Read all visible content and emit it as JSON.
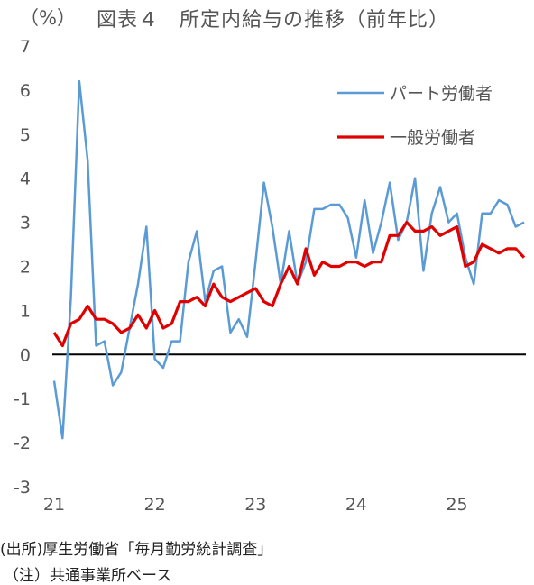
{
  "chart_data": {
    "type": "line",
    "unit_label": "（%）",
    "title": "図表４　所定内給与の推移（前年比）",
    "ylim": [
      -3,
      7
    ],
    "y_ticks": [
      7,
      6,
      5,
      4,
      3,
      2,
      1,
      0,
      -1,
      -2,
      -3
    ],
    "x_tick_labels": [
      "21",
      "22",
      "23",
      "24",
      "25"
    ],
    "legend_position": "top-right",
    "series": [
      {
        "name": "パート労働者",
        "color": "#5b9bd5",
        "values": [
          -0.6,
          -1.9,
          1.3,
          6.2,
          4.4,
          0.2,
          0.3,
          -0.7,
          -0.4,
          0.6,
          1.6,
          2.9,
          -0.1,
          -0.3,
          0.3,
          0.3,
          2.1,
          2.8,
          1.2,
          1.9,
          2.0,
          0.5,
          0.8,
          0.4,
          2.1,
          3.9,
          2.9,
          1.6,
          2.8,
          1.6,
          2.1,
          3.3,
          3.3,
          3.4,
          3.4,
          3.1,
          2.2,
          3.5,
          2.3,
          3.0,
          3.9,
          2.6,
          3.0,
          4.0,
          1.9,
          3.2,
          3.8,
          3.0,
          3.2,
          2.2,
          1.6,
          3.2,
          3.2,
          3.5,
          3.4,
          2.9,
          3.0
        ]
      },
      {
        "name": "一般労働者",
        "color": "#e00000",
        "values": [
          0.5,
          0.2,
          0.7,
          0.8,
          1.1,
          0.8,
          0.8,
          0.7,
          0.5,
          0.6,
          0.9,
          0.6,
          1.0,
          0.6,
          0.7,
          1.2,
          1.2,
          1.3,
          1.1,
          1.6,
          1.3,
          1.2,
          1.3,
          1.4,
          1.5,
          1.2,
          1.1,
          1.6,
          2.0,
          1.6,
          2.4,
          1.8,
          2.1,
          2.0,
          2.0,
          2.1,
          2.1,
          2.0,
          2.1,
          2.1,
          2.7,
          2.7,
          3.0,
          2.8,
          2.8,
          2.9,
          2.7,
          2.8,
          2.9,
          2.0,
          2.1,
          2.5,
          2.4,
          2.3,
          2.4,
          2.4,
          2.2
        ]
      }
    ]
  },
  "notes": {
    "source": "(出所)厚生労働省「毎月勤労統計調査」",
    "note": "（注）共通事業所ベース"
  }
}
